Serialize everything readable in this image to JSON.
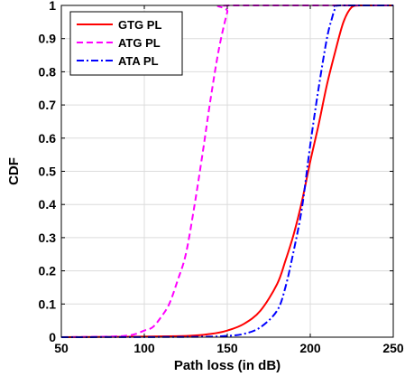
{
  "chart_data": {
    "type": "line",
    "title": "",
    "xlabel": "Path loss (in dB)",
    "ylabel": "CDF",
    "xlim": [
      50,
      250
    ],
    "ylim": [
      0,
      1
    ],
    "xticks": [
      50,
      100,
      150,
      200,
      250
    ],
    "yticks": [
      0,
      0.1,
      0.2,
      0.3,
      0.4,
      0.5,
      0.6,
      0.7,
      0.8,
      0.9,
      1
    ],
    "grid": true,
    "legend_position": "top-left",
    "series": [
      {
        "name": "GTG PL",
        "color": "#ff0000",
        "style": "solid",
        "points": [
          [
            50,
            0
          ],
          [
            120,
            0.003
          ],
          [
            140,
            0.01
          ],
          [
            150,
            0.02
          ],
          [
            160,
            0.04
          ],
          [
            170,
            0.08
          ],
          [
            180,
            0.16
          ],
          [
            185,
            0.23
          ],
          [
            190,
            0.31
          ],
          [
            195,
            0.41
          ],
          [
            200,
            0.53
          ],
          [
            205,
            0.64
          ],
          [
            210,
            0.76
          ],
          [
            215,
            0.86
          ],
          [
            220,
            0.95
          ],
          [
            225,
            0.995
          ],
          [
            230,
            1
          ],
          [
            250,
            1
          ]
        ]
      },
      {
        "name": "ATG PL",
        "color": "#ff00ff",
        "style": "dashed",
        "points": [
          [
            50,
            0
          ],
          [
            80,
            0.002
          ],
          [
            90,
            0.005
          ],
          [
            95,
            0.01
          ],
          [
            100,
            0.02
          ],
          [
            105,
            0.03
          ],
          [
            110,
            0.06
          ],
          [
            115,
            0.1
          ],
          [
            120,
            0.17
          ],
          [
            125,
            0.25
          ],
          [
            130,
            0.39
          ],
          [
            135,
            0.55
          ],
          [
            140,
            0.72
          ],
          [
            145,
            0.87
          ],
          [
            150,
            0.98
          ],
          [
            152,
            1
          ],
          [
            250,
            1
          ]
        ]
      },
      {
        "name": "ATA PL",
        "color": "#0000ff",
        "style": "dashdot",
        "points": [
          [
            50,
            0
          ],
          [
            130,
            0.001
          ],
          [
            150,
            0.004
          ],
          [
            160,
            0.01
          ],
          [
            170,
            0.03
          ],
          [
            180,
            0.08
          ],
          [
            185,
            0.15
          ],
          [
            190,
            0.26
          ],
          [
            195,
            0.39
          ],
          [
            200,
            0.58
          ],
          [
            205,
            0.75
          ],
          [
            210,
            0.9
          ],
          [
            213,
            0.96
          ],
          [
            215,
            0.99
          ],
          [
            218,
            1
          ],
          [
            250,
            1
          ]
        ]
      }
    ]
  }
}
